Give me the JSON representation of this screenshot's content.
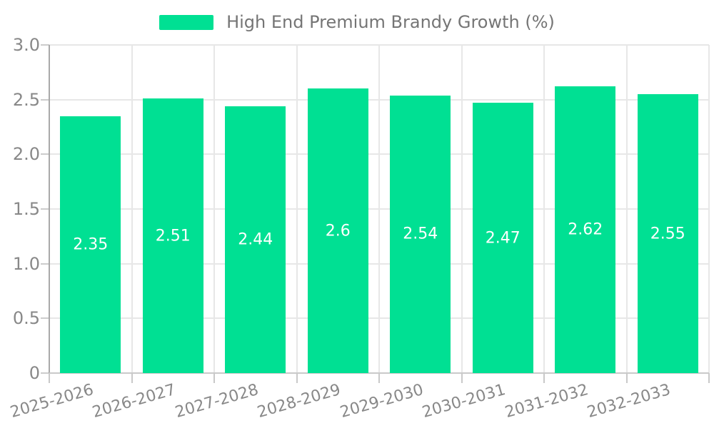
{
  "legend": {
    "label": "High End Premium Brandy Growth (%)"
  },
  "chart_data": {
    "type": "bar",
    "title": "High End Premium Brandy Growth (%)",
    "categories": [
      "2025-2026",
      "2026-2027",
      "2027-2028",
      "2028-2029",
      "2029-2030",
      "2030-2031",
      "2031-2032",
      "2032-2033"
    ],
    "values": [
      2.35,
      2.51,
      2.44,
      2.6,
      2.54,
      2.47,
      2.62,
      2.55
    ],
    "value_labels": [
      "2.35",
      "2.51",
      "2.44",
      "2.6",
      "2.54",
      "2.47",
      "2.62",
      "2.55"
    ],
    "xlabel": "",
    "ylabel": "",
    "ylim": [
      0,
      3
    ],
    "ytick_values": [
      0,
      0.5,
      1,
      1.5,
      2,
      2.5,
      3
    ],
    "ytick_labels": [
      "0",
      "0.5",
      "1.0",
      "1.5",
      "2.0",
      "2.5",
      "3.0"
    ],
    "grid": true,
    "legend_position": "top-center",
    "colors": {
      "bar": "#00E093",
      "value_label": "#ffffff",
      "gridline": "#e7e7e7",
      "y_axis_line": "#a9a9a9",
      "x_axis_line": "#c9c9c9",
      "tick": "#cccccc",
      "tick_label": "#888888",
      "legend_text": "#757575"
    }
  }
}
